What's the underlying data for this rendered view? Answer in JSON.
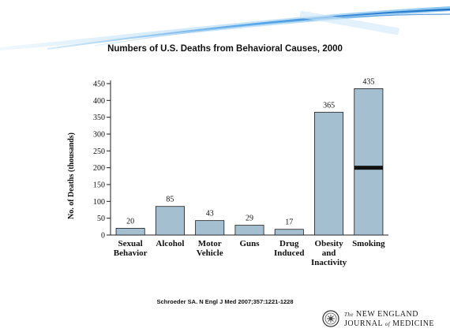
{
  "slide_title": "Numbers of U.S. Deaths from Behavioral Causes, 2000",
  "source_citation": "Schroeder SA. N Engl J Med 2007;357:1221-1228",
  "journal_logo": {
    "line1_prefix": "The",
    "line1_main": "NEW ENGLAND",
    "line2_main": "JOURNAL",
    "line2_of": "of",
    "line2_end": "MEDICINE"
  },
  "colors": {
    "bar_fill": "#a4bfcf",
    "bar_stroke": "#1a1a1a",
    "smoking_marker": "#111111",
    "swoosh": "#3a8fd6"
  },
  "chart_data": {
    "type": "bar",
    "title": "Numbers of U.S. Deaths from Behavioral Causes, 2000",
    "ylabel": "No. of Deaths (thousands)",
    "xlabel": "",
    "ylim": [
      0,
      450
    ],
    "yticks": [
      0,
      50,
      100,
      150,
      200,
      250,
      300,
      350,
      400,
      450
    ],
    "categories": [
      [
        "Sexual",
        "Behavior"
      ],
      [
        "Alcohol"
      ],
      [
        "Motor",
        "Vehicle"
      ],
      [
        "Guns"
      ],
      [
        "Drug",
        "Induced"
      ],
      [
        "Obesity",
        "and",
        "Inactivity"
      ],
      [
        "Smoking"
      ]
    ],
    "values": [
      20,
      85,
      43,
      29,
      17,
      365,
      435
    ],
    "marker": {
      "category_index": 6,
      "value": 200
    },
    "grid": false,
    "legend": "none"
  }
}
